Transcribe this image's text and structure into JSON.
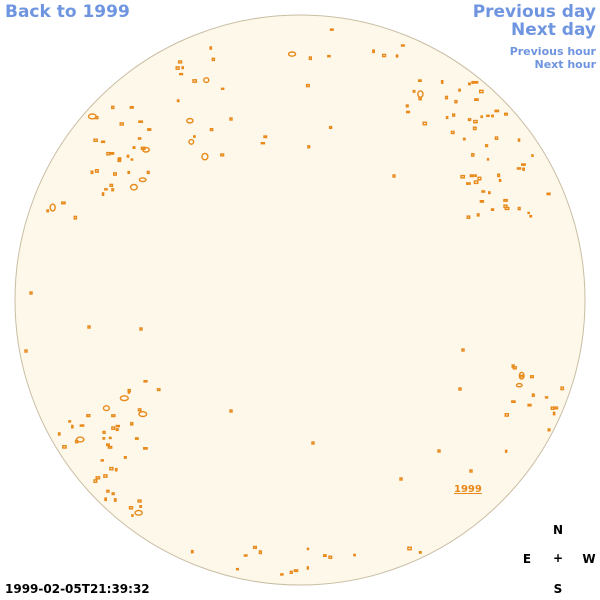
{
  "nav": {
    "back_label": "Back to 1999",
    "prev_day_label": "Previous day",
    "next_day_label": "Next day",
    "prev_hour_label": "Previous hour",
    "next_hour_label": "Next hour"
  },
  "timestamp": "1999-02-05T21:39:32",
  "compass": {
    "north": "N",
    "east": "E",
    "west": "W",
    "south": "S",
    "center": "+"
  },
  "year_label": "1999",
  "colors": {
    "link": "#6f95e0",
    "disc_fill": "#fdf8ea",
    "disc_stroke": "#c9bea4",
    "feature": "#e8891a"
  }
}
